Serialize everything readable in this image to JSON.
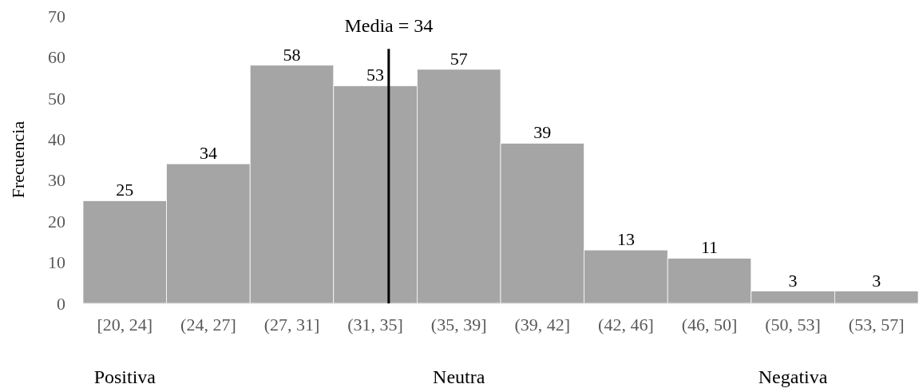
{
  "chart_data": {
    "type": "bar",
    "ylabel": "Frecuencia",
    "categories": [
      "[20, 24]",
      "(24, 27]",
      "(27, 31]",
      "(31, 35]",
      "(35, 39]",
      "(39, 42]",
      "(42, 46]",
      "(46, 50]",
      "(50, 53]",
      "(53, 57]"
    ],
    "values": [
      25,
      34,
      58,
      53,
      57,
      39,
      13,
      11,
      3,
      3
    ],
    "color": "#a5a5a5",
    "data_labels": true,
    "ylim": [
      0,
      70
    ],
    "yticks": [
      0,
      10,
      20,
      30,
      40,
      50,
      60,
      70
    ],
    "ref_lines": [
      {
        "axis": "x",
        "value": "(31, 35]",
        "label": "Media = 34",
        "color": "#000000"
      }
    ],
    "annotations": [
      "Positiva",
      "Neutra",
      "Negativa"
    ]
  }
}
